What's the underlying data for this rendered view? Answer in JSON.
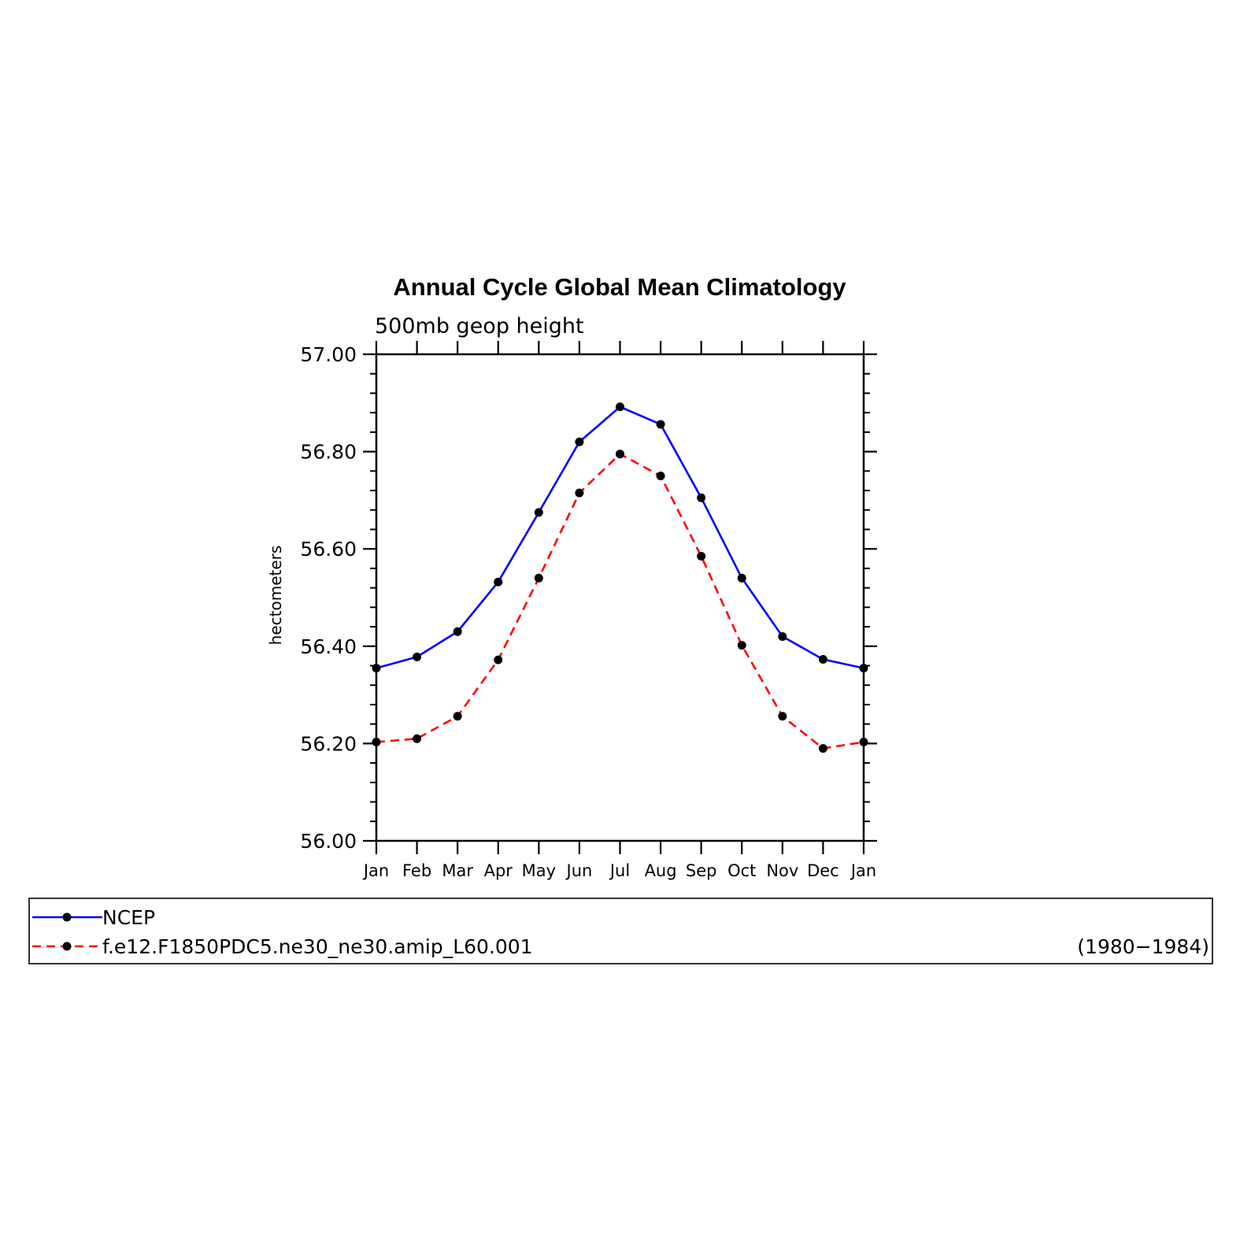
{
  "chart_data": {
    "type": "line",
    "title": "Annual Cycle Global Mean Climatology",
    "subtitle": "500mb geop height",
    "ylabel": "hectometers",
    "xlabel": "",
    "ylim": [
      56.0,
      57.0
    ],
    "yticks": [
      "56.00",
      "56.20",
      "56.40",
      "56.60",
      "56.80",
      "57.00"
    ],
    "categories": [
      "Jan",
      "Feb",
      "Mar",
      "Apr",
      "May",
      "Jun",
      "Jul",
      "Aug",
      "Sep",
      "Oct",
      "Nov",
      "Dec",
      "Jan"
    ],
    "grid": false,
    "legend_position": "bottom",
    "series": [
      {
        "name": "NCEP",
        "color": "#0000ff",
        "style": "solid",
        "values": [
          56.355,
          56.378,
          56.43,
          56.532,
          56.675,
          56.82,
          56.892,
          56.856,
          56.705,
          56.54,
          56.42,
          56.373,
          56.355
        ]
      },
      {
        "name": "f.e12.F1850PDC5.ne30_ne30.amip_L60.001",
        "color": "#ff0000",
        "style": "dashed",
        "values": [
          56.203,
          56.21,
          56.256,
          56.372,
          56.54,
          56.715,
          56.795,
          56.75,
          56.585,
          56.402,
          56.256,
          56.19,
          56.203
        ]
      }
    ],
    "legend_note": "(1980−1984)"
  }
}
